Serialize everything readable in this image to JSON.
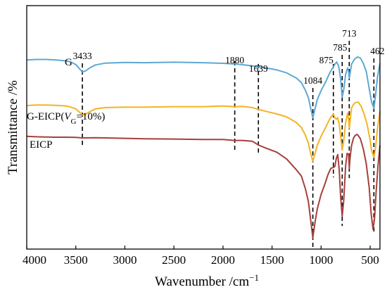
{
  "chart_data": {
    "type": "line",
    "xlabel": "Wavenumber /cm",
    "xlabel_superscript": "−1",
    "ylabel": "Transmittance /%",
    "xlim": [
      4000,
      400
    ],
    "x_reversed": true,
    "y_ticks_shown": false,
    "grid": false,
    "x_ticks": [
      4000,
      3500,
      3000,
      2500,
      2000,
      1500,
      1000,
      500
    ],
    "x_tick_labels": [
      "4000",
      "3500",
      "3000",
      "2500",
      "2000",
      "1500",
      "1000",
      "500"
    ],
    "series": [
      {
        "name": "G",
        "label_parts": [
          "G"
        ],
        "color": "#5fa8d3",
        "points": [
          [
            4000,
            0.805
          ],
          [
            3900,
            0.807
          ],
          [
            3800,
            0.807
          ],
          [
            3700,
            0.805
          ],
          [
            3600,
            0.801
          ],
          [
            3550,
            0.796
          ],
          [
            3500,
            0.785
          ],
          [
            3460,
            0.765
          ],
          [
            3433,
            0.752
          ],
          [
            3400,
            0.757
          ],
          [
            3350,
            0.772
          ],
          [
            3300,
            0.783
          ],
          [
            3200,
            0.791
          ],
          [
            3000,
            0.794
          ],
          [
            2800,
            0.793
          ],
          [
            2500,
            0.795
          ],
          [
            2200,
            0.793
          ],
          [
            2000,
            0.79
          ],
          [
            1880,
            0.787
          ],
          [
            1800,
            0.784
          ],
          [
            1700,
            0.779
          ],
          [
            1639,
            0.775
          ],
          [
            1550,
            0.769
          ],
          [
            1450,
            0.761
          ],
          [
            1350,
            0.748
          ],
          [
            1250,
            0.725
          ],
          [
            1200,
            0.705
          ],
          [
            1160,
            0.672
          ],
          [
            1130,
            0.64
          ],
          [
            1105,
            0.59
          ],
          [
            1084,
            0.552
          ],
          [
            1065,
            0.585
          ],
          [
            1040,
            0.63
          ],
          [
            1000,
            0.67
          ],
          [
            950,
            0.712
          ],
          [
            910,
            0.75
          ],
          [
            875,
            0.775
          ],
          [
            860,
            0.786
          ],
          [
            840,
            0.796
          ],
          [
            820,
            0.776
          ],
          [
            800,
            0.72
          ],
          [
            785,
            0.642
          ],
          [
            770,
            0.672
          ],
          [
            750,
            0.742
          ],
          [
            730,
            0.77
          ],
          [
            720,
            0.755
          ],
          [
            713,
            0.724
          ],
          [
            705,
            0.744
          ],
          [
            690,
            0.786
          ],
          [
            660,
            0.808
          ],
          [
            630,
            0.818
          ],
          [
            600,
            0.814
          ],
          [
            570,
            0.79
          ],
          [
            540,
            0.755
          ],
          [
            510,
            0.68
          ],
          [
            485,
            0.62
          ],
          [
            462,
            0.593
          ],
          [
            445,
            0.65
          ],
          [
            425,
            0.73
          ],
          [
            400,
            0.79
          ]
        ]
      },
      {
        "name": "G-EICP(VG=10%)",
        "label_parts": [
          "G-EICP(",
          "V",
          "G",
          "=10%)"
        ],
        "color": "#f5b324",
        "points": [
          [
            4000,
            0.605
          ],
          [
            3900,
            0.607
          ],
          [
            3800,
            0.607
          ],
          [
            3700,
            0.606
          ],
          [
            3600,
            0.603
          ],
          [
            3550,
            0.598
          ],
          [
            3500,
            0.59
          ],
          [
            3460,
            0.575
          ],
          [
            3433,
            0.563
          ],
          [
            3400,
            0.567
          ],
          [
            3350,
            0.58
          ],
          [
            3300,
            0.59
          ],
          [
            3200,
            0.596
          ],
          [
            3000,
            0.598
          ],
          [
            2800,
            0.598
          ],
          [
            2500,
            0.6
          ],
          [
            2200,
            0.6
          ],
          [
            2000,
            0.603
          ],
          [
            1880,
            0.6
          ],
          [
            1800,
            0.601
          ],
          [
            1700,
            0.596
          ],
          [
            1639,
            0.588
          ],
          [
            1550,
            0.578
          ],
          [
            1450,
            0.568
          ],
          [
            1350,
            0.555
          ],
          [
            1250,
            0.53
          ],
          [
            1200,
            0.508
          ],
          [
            1160,
            0.475
          ],
          [
            1130,
            0.44
          ],
          [
            1105,
            0.392
          ],
          [
            1084,
            0.36
          ],
          [
            1065,
            0.39
          ],
          [
            1040,
            0.43
          ],
          [
            1000,
            0.47
          ],
          [
            950,
            0.512
          ],
          [
            910,
            0.548
          ],
          [
            875,
            0.568
          ],
          [
            860,
            0.552
          ],
          [
            845,
            0.545
          ],
          [
            830,
            0.552
          ],
          [
            815,
            0.522
          ],
          [
            800,
            0.468
          ],
          [
            785,
            0.41
          ],
          [
            770,
            0.448
          ],
          [
            750,
            0.53
          ],
          [
            730,
            0.572
          ],
          [
            720,
            0.548
          ],
          [
            713,
            0.505
          ],
          [
            705,
            0.535
          ],
          [
            690,
            0.595
          ],
          [
            670,
            0.61
          ],
          [
            650,
            0.618
          ],
          [
            620,
            0.62
          ],
          [
            590,
            0.6
          ],
          [
            560,
            0.566
          ],
          [
            530,
            0.52
          ],
          [
            500,
            0.452
          ],
          [
            485,
            0.408
          ],
          [
            462,
            0.378
          ],
          [
            445,
            0.42
          ],
          [
            425,
            0.505
          ],
          [
            400,
            0.58
          ]
        ]
      },
      {
        "name": "EICP",
        "label_parts": [
          "EICP"
        ],
        "color": "#a5403c",
        "points": [
          [
            4000,
            0.47
          ],
          [
            3900,
            0.468
          ],
          [
            3800,
            0.467
          ],
          [
            3700,
            0.466
          ],
          [
            3600,
            0.466
          ],
          [
            3500,
            0.465
          ],
          [
            3433,
            0.463
          ],
          [
            3300,
            0.464
          ],
          [
            3200,
            0.463
          ],
          [
            3000,
            0.461
          ],
          [
            2800,
            0.459
          ],
          [
            2500,
            0.458
          ],
          [
            2200,
            0.456
          ],
          [
            2000,
            0.456
          ],
          [
            1880,
            0.452
          ],
          [
            1800,
            0.452
          ],
          [
            1700,
            0.448
          ],
          [
            1639,
            0.432
          ],
          [
            1550,
            0.416
          ],
          [
            1450,
            0.4
          ],
          [
            1350,
            0.37
          ],
          [
            1250,
            0.322
          ],
          [
            1200,
            0.295
          ],
          [
            1160,
            0.24
          ],
          [
            1130,
            0.185
          ],
          [
            1105,
            0.098
          ],
          [
            1084,
            0.025
          ],
          [
            1065,
            0.085
          ],
          [
            1040,
            0.15
          ],
          [
            1000,
            0.215
          ],
          [
            960,
            0.262
          ],
          [
            930,
            0.302
          ],
          [
            900,
            0.33
          ],
          [
            875,
            0.333
          ],
          [
            860,
            0.338
          ],
          [
            845,
            0.372
          ],
          [
            830,
            0.39
          ],
          [
            815,
            0.322
          ],
          [
            800,
            0.2
          ],
          [
            785,
            0.12
          ],
          [
            770,
            0.185
          ],
          [
            750,
            0.34
          ],
          [
            735,
            0.395
          ],
          [
            720,
            0.392
          ],
          [
            713,
            0.33
          ],
          [
            705,
            0.375
          ],
          [
            690,
            0.43
          ],
          [
            670,
            0.462
          ],
          [
            650,
            0.475
          ],
          [
            630,
            0.478
          ],
          [
            600,
            0.46
          ],
          [
            570,
            0.415
          ],
          [
            540,
            0.35
          ],
          [
            510,
            0.245
          ],
          [
            490,
            0.13
          ],
          [
            470,
            0.062
          ],
          [
            455,
            0.11
          ],
          [
            440,
            0.22
          ],
          [
            420,
            0.34
          ],
          [
            400,
            0.43
          ]
        ]
      }
    ],
    "peaks": [
      {
        "x": 3433,
        "label": "3433"
      },
      {
        "x": 1880,
        "label": "1880"
      },
      {
        "x": 1639,
        "label": "1639"
      },
      {
        "x": 1084,
        "label": "1084"
      },
      {
        "x": 875,
        "label": "875"
      },
      {
        "x": 785,
        "label": "785"
      },
      {
        "x": 713,
        "label": "713"
      },
      {
        "x": 462,
        "label": "462"
      }
    ]
  }
}
